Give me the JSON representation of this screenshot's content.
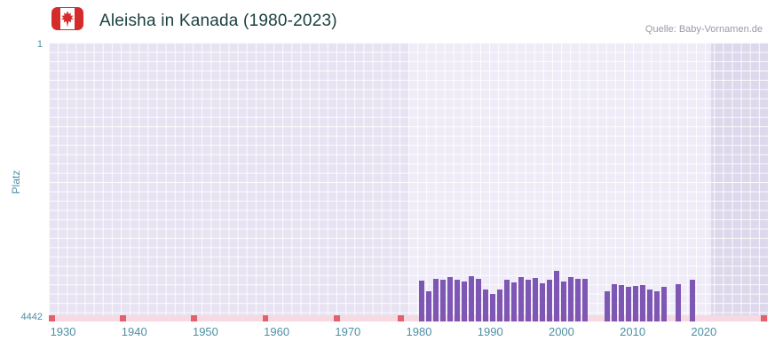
{
  "header": {
    "title": "Aleisha in Kanada (1980-2023)",
    "source": "Quelle: Baby-Vornamen.de"
  },
  "axes": {
    "y_label": "Platz",
    "y_top_tick": "1",
    "y_bottom_tick": "4442",
    "x_ticks": [
      "1930",
      "1940",
      "1950",
      "1960",
      "1970",
      "1980",
      "1990",
      "2000",
      "2010",
      "2020"
    ]
  },
  "colors": {
    "bar": "#7e57b5",
    "axis_text": "#4e8fa5",
    "title_text": "#1b4040",
    "source_text": "#979ca6",
    "plot_bg": "#e8e3f2",
    "band_mid": "#efecf8",
    "band_right": "#ded8ec",
    "grid_line": "#ffffff",
    "strip_bg": "#f7d9e2",
    "marker_red": "#e4606d",
    "flag_red": "#d52b2b"
  },
  "chart_data": {
    "type": "bar",
    "title": "Aleisha in Kanada (1980-2023)",
    "xlabel": "",
    "ylabel": "Platz",
    "ylim": [
      1,
      4442
    ],
    "y_axis_inverted_rank": true,
    "x_range_shown": [
      1928,
      2029
    ],
    "x": [
      1980,
      1981,
      1982,
      1983,
      1984,
      1985,
      1986,
      1987,
      1988,
      1989,
      1990,
      1991,
      1992,
      1993,
      1994,
      1995,
      1996,
      1997,
      1998,
      1999,
      2000,
      2001,
      2002,
      2003,
      2004,
      2005,
      2006,
      2007,
      2008,
      2009,
      2010,
      2011,
      2012,
      2013,
      2014,
      2015,
      2016,
      2017,
      2018,
      2019,
      2020,
      2021,
      2022,
      2023
    ],
    "values": [
      3790,
      3960,
      3760,
      3780,
      3740,
      3770,
      3800,
      3720,
      3760,
      3930,
      4000,
      3930,
      3770,
      3820,
      3740,
      3780,
      3750,
      3830,
      3770,
      3640,
      3800,
      3740,
      3760,
      3760,
      null,
      null,
      3960,
      3850,
      3860,
      3890,
      3880,
      3860,
      3930,
      3960,
      3890,
      null,
      3850,
      null,
      3780,
      null,
      null,
      null,
      null,
      null
    ],
    "no_data_marker_years": [
      1928,
      1938,
      1948,
      1958,
      1968,
      1977,
      2028
    ],
    "legend": null,
    "grid": true
  }
}
